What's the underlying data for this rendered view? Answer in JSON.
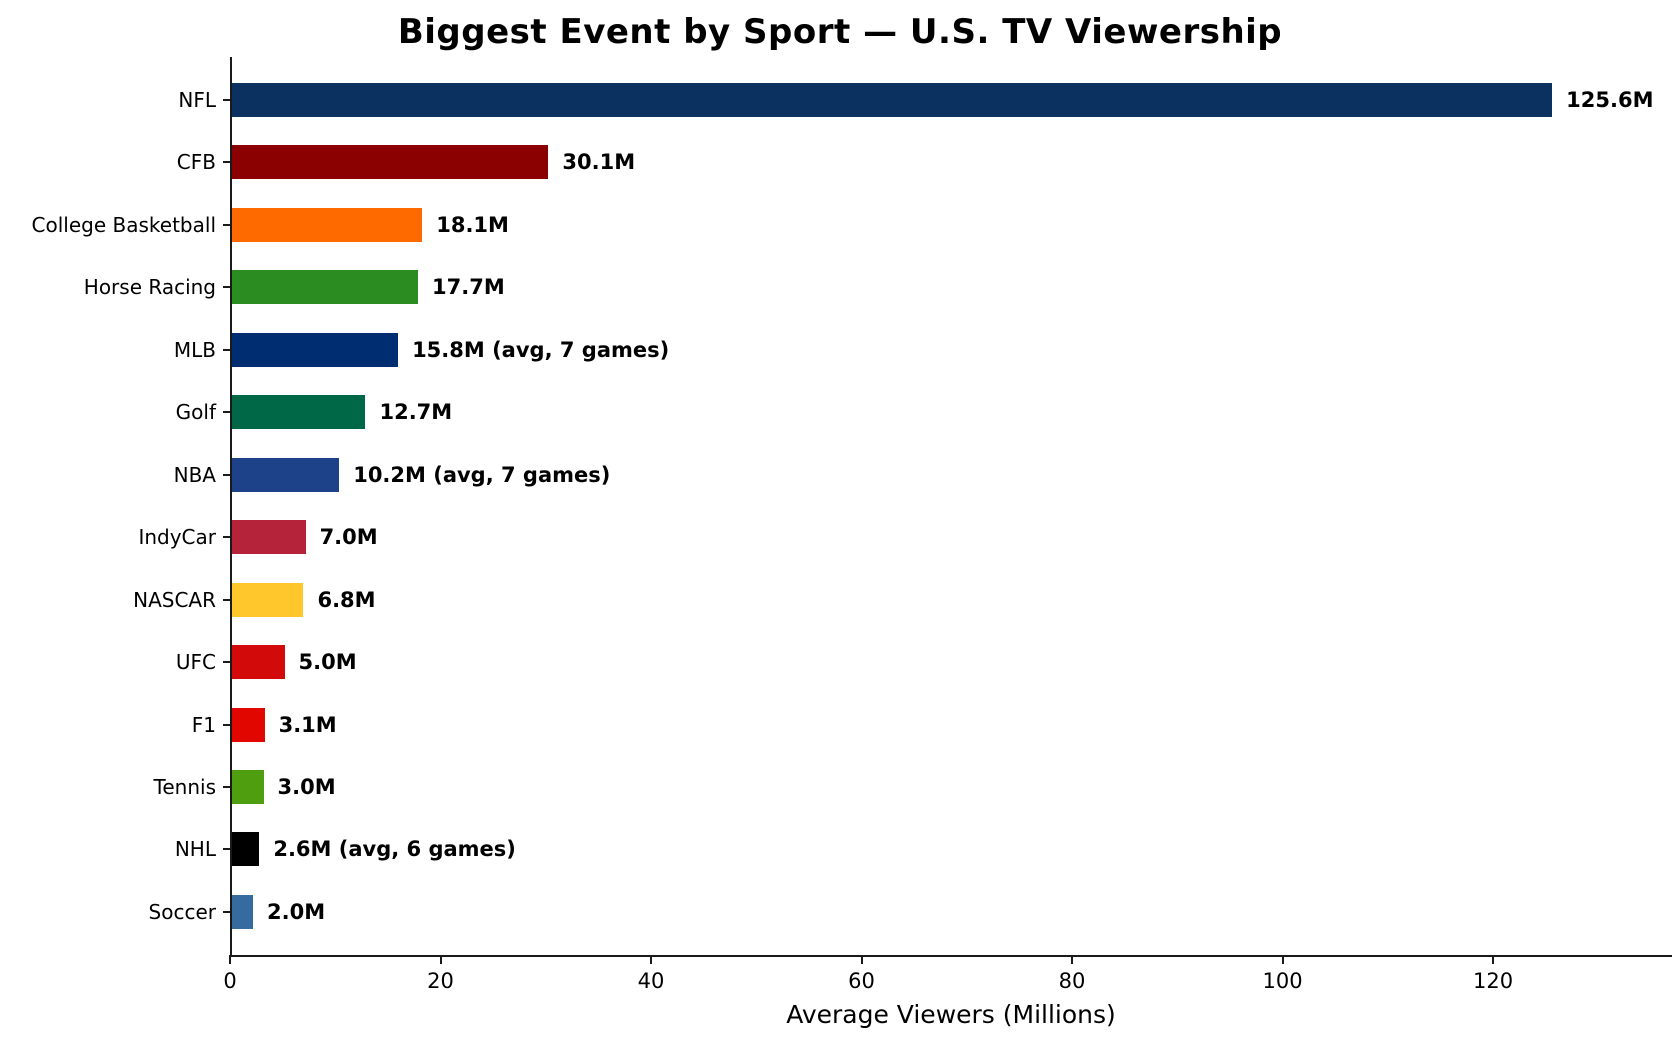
{
  "title": "Biggest Event by Sport — U.S. TV Viewership",
  "chart_data": {
    "type": "bar",
    "orientation": "horizontal",
    "title": "Biggest Event by Sport — U.S. TV Viewership",
    "xlabel": "Average Viewers (Millions)",
    "ylabel": "",
    "xlim": [
      0,
      137
    ],
    "xticks": [
      0,
      20,
      40,
      60,
      80,
      100,
      120
    ],
    "grid": false,
    "legend": false,
    "categories": [
      "NFL",
      "CFB",
      "College Basketball",
      "Horse Racing",
      "MLB",
      "Golf",
      "NBA",
      "IndyCar",
      "NASCAR",
      "UFC",
      "F1",
      "Tennis",
      "NHL",
      "Soccer"
    ],
    "values": [
      125.6,
      30.1,
      18.1,
      17.7,
      15.8,
      12.7,
      10.2,
      7.0,
      6.8,
      5.0,
      3.1,
      3.0,
      2.6,
      2.0
    ],
    "bar_labels": [
      "125.6M",
      "30.1M",
      "18.1M",
      "17.7M",
      "15.8M (avg, 7 games)",
      "12.7M",
      "10.2M (avg, 7 games)",
      "7.0M",
      "6.8M",
      "5.0M",
      "3.1M",
      "3.0M",
      "2.6M (avg, 6 games)",
      "2.0M"
    ],
    "colors": [
      "#0b3161",
      "#8b0000",
      "#ff6a00",
      "#2a8c21",
      "#002d72",
      "#006747",
      "#1d428a",
      "#b5233b",
      "#ffc72c",
      "#d20a0a",
      "#e10600",
      "#4f9e0f",
      "#000000",
      "#356b9e"
    ],
    "text_color": "#000000",
    "axis_color": "#1a1a1a",
    "background_color": "#ffffff"
  }
}
